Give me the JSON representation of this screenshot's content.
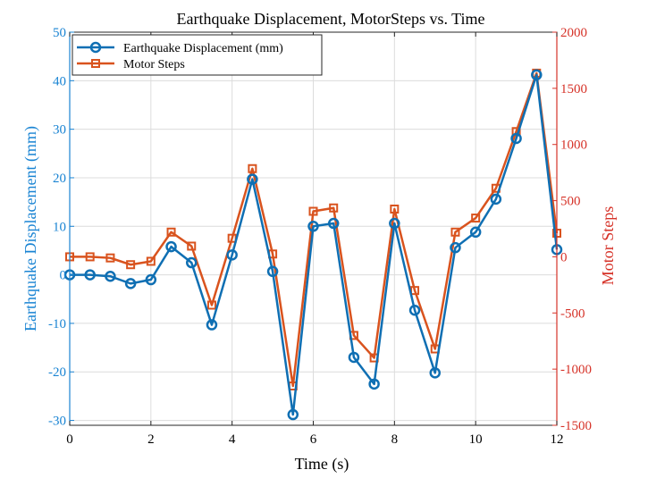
{
  "chart_data": {
    "type": "line",
    "title": "Earthquake Displacement, MotorSteps vs. Time",
    "xlabel": "Time (s)",
    "ylabel_left": "Earthquake Displacement (mm)",
    "ylabel_right": "Motor Steps",
    "xlim": [
      0,
      12
    ],
    "ylim_left": [
      -31,
      50
    ],
    "ylim_right": [
      -1500,
      2000
    ],
    "xticks": [
      0,
      2,
      4,
      6,
      8,
      10,
      12
    ],
    "yticks_left": [
      -30,
      -20,
      -10,
      0,
      10,
      20,
      30,
      40,
      50
    ],
    "yticks_right": [
      -1500,
      -1000,
      -500,
      0,
      500,
      1000,
      1500,
      2000
    ],
    "grid": true,
    "legend_position": "top-left",
    "colors": {
      "left_axis": "#1a84d3",
      "right_axis": "#d63228",
      "displacement_line": "#0f6fb3",
      "steps_line": "#d9531e"
    },
    "x": [
      0,
      0.5,
      1,
      1.5,
      2,
      2.5,
      3,
      3.5,
      4,
      4.5,
      5,
      5.5,
      6,
      6.5,
      7,
      7.5,
      8,
      8.5,
      9,
      9.5,
      10,
      10.5,
      11,
      11.5,
      12
    ],
    "series": [
      {
        "name": "Earthquake Displacement (mm)",
        "axis": "left",
        "marker": "circle",
        "values": [
          0,
          0,
          -0.3,
          -1.8,
          -1,
          5.8,
          2.5,
          -10.3,
          4.1,
          19.7,
          0.7,
          -28.8,
          10,
          10.6,
          -17,
          -22.5,
          10.6,
          -7.3,
          -20.2,
          5.6,
          8.8,
          15.6,
          28.1,
          41.2,
          5.2
        ]
      },
      {
        "name": "Motor Steps",
        "axis": "right",
        "marker": "square",
        "values": [
          0,
          0,
          -10,
          -70,
          -40,
          220,
          95,
          -430,
          165,
          785,
          25,
          -1150,
          405,
          435,
          -700,
          -900,
          425,
          -300,
          -820,
          220,
          345,
          610,
          1115,
          1635,
          210
        ]
      }
    ]
  }
}
